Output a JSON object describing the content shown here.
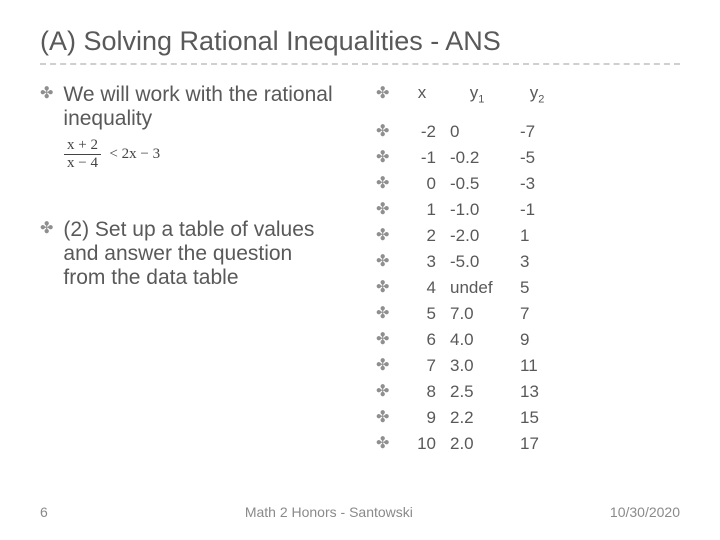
{
  "title": "(A) Solving Rational Inequalities - ANS",
  "left": {
    "bullets": [
      "We will work with the rational inequality",
      "(2) Set up a table of values and answer the question from the data table"
    ],
    "formula": {
      "numerator": "x + 2",
      "denominator": "x − 4",
      "rhs": "< 2x − 3"
    }
  },
  "table": {
    "headers": {
      "x": "x",
      "y1_base": "y",
      "y1_sub": "1",
      "y2_base": "y",
      "y2_sub": "2"
    },
    "rows": [
      {
        "x": "-2",
        "y1": "0",
        "y2": "-7"
      },
      {
        "x": "-1",
        "y1": "-0.2",
        "y2": "-5"
      },
      {
        "x": "0",
        "y1": "-0.5",
        "y2": "-3"
      },
      {
        "x": "1",
        "y1": "-1.0",
        "y2": "-1"
      },
      {
        "x": "2",
        "y1": "-2.0",
        "y2": "1"
      },
      {
        "x": "3",
        "y1": "-5.0",
        "y2": "3"
      },
      {
        "x": "4",
        "y1": "undef",
        "y2": "5"
      },
      {
        "x": "5",
        "y1": "7.0",
        "y2": "7"
      },
      {
        "x": "6",
        "y1": "4.0",
        "y2": "9"
      },
      {
        "x": "7",
        "y1": "3.0",
        "y2": "11"
      },
      {
        "x": "8",
        "y1": "2.5",
        "y2": "13"
      },
      {
        "x": "9",
        "y1": "2.2",
        "y2": "15"
      },
      {
        "x": "10",
        "y1": "2.0",
        "y2": "17"
      }
    ]
  },
  "footer": {
    "page": "6",
    "center": "Math 2 Honors - Santowski",
    "date": "10/30/2020"
  },
  "colors": {
    "text": "#595959",
    "glyph": "#8f8f8f",
    "divider": "#cfcfcf",
    "bg": "#ffffff"
  },
  "bullet_glyph": "✤"
}
